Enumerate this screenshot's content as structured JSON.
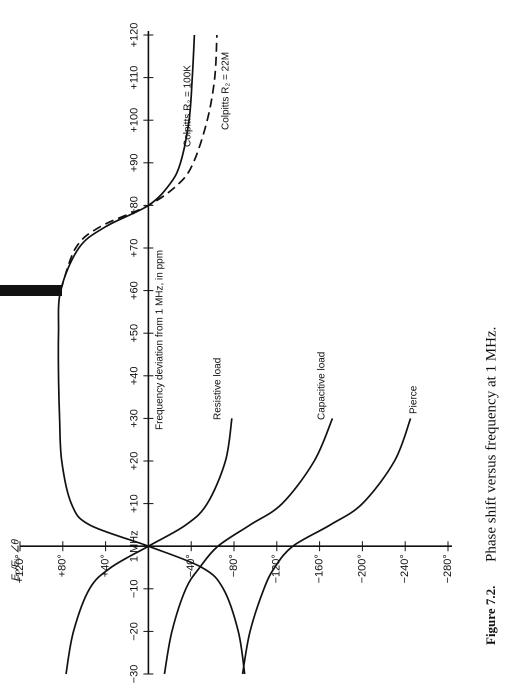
{
  "chart_data": {
    "type": "line",
    "caption_number": "Figure 7.2.",
    "caption": "Phase shift versus frequency at 1 MHz.",
    "xlabel": "Frequency deviation from 1 MHz, in ppm",
    "ylabel": "E₀/Eᵢ, ∠θ",
    "x": [
      -30,
      -20,
      -10,
      -5,
      0,
      5,
      10,
      20,
      30,
      40,
      50,
      60,
      70,
      75,
      80,
      85,
      90,
      100,
      110,
      120
    ],
    "xlim": [
      -30,
      120
    ],
    "ylim": [
      -280,
      120
    ],
    "xticks": [
      {
        "value": -30,
        "label": "−30"
      },
      {
        "value": -20,
        "label": "−20"
      },
      {
        "value": -10,
        "label": "−10"
      },
      {
        "value": 0,
        "label": "1 MHz"
      },
      {
        "value": 10,
        "label": "+10"
      },
      {
        "value": 20,
        "label": "+20"
      },
      {
        "value": 30,
        "label": "+30"
      },
      {
        "value": 40,
        "label": "+40"
      },
      {
        "value": 50,
        "label": "+50"
      },
      {
        "value": 60,
        "label": "+60"
      },
      {
        "value": 70,
        "label": "+70"
      },
      {
        "value": 80,
        "label": "+80"
      },
      {
        "value": 90,
        "label": "+90"
      },
      {
        "value": 100,
        "label": "+100"
      },
      {
        "value": 110,
        "label": "+110"
      },
      {
        "value": 120,
        "label": "+120"
      }
    ],
    "yticks": [
      {
        "value": 120,
        "label": "+120°"
      },
      {
        "value": 80,
        "label": "+80°"
      },
      {
        "value": 40,
        "label": "+40°"
      },
      {
        "value": -40,
        "label": "−40°"
      },
      {
        "value": -80,
        "label": "−80°"
      },
      {
        "value": -120,
        "label": "−120°"
      },
      {
        "value": -160,
        "label": "−160°"
      },
      {
        "value": -200,
        "label": "−200°"
      },
      {
        "value": -240,
        "label": "−240°"
      },
      {
        "value": -280,
        "label": "−280°"
      }
    ],
    "series": [
      {
        "name": "Colpitts R₂ = 100K",
        "color": "#111",
        "dashed": false,
        "values": [
          -90,
          -84,
          -70,
          -50,
          0,
          55,
          72,
          81,
          83,
          84,
          84,
          82,
          65,
          40,
          0,
          -20,
          -30,
          -38,
          -41,
          -43
        ]
      },
      {
        "name": "Colpitts R₂ = 22M",
        "color": "#111",
        "dashed": true,
        "values": [
          null,
          null,
          null,
          null,
          null,
          null,
          null,
          null,
          null,
          null,
          null,
          82,
          68,
          45,
          0,
          -28,
          -42,
          -55,
          -62,
          -64
        ]
      },
      {
        "name": "Resistive load",
        "color": "#111",
        "dashed": false,
        "values": [
          77,
          70,
          55,
          35,
          0,
          -35,
          -55,
          -72,
          -78,
          null,
          null,
          null,
          null,
          null,
          null,
          null,
          null,
          null,
          null,
          null
        ]
      },
      {
        "name": "Capacitive load",
        "color": "#111",
        "dashed": false,
        "values": [
          -15,
          -22,
          -35,
          -48,
          -65,
          -95,
          -125,
          -155,
          -172,
          null,
          null,
          null,
          null,
          null,
          null,
          null,
          null,
          null,
          null,
          null
        ]
      },
      {
        "name": "Pierce",
        "color": "#111",
        "dashed": false,
        "values": [
          -88,
          -95,
          -108,
          -118,
          -135,
          -170,
          -200,
          -230,
          -245,
          null,
          null,
          null,
          null,
          null,
          null,
          null,
          null,
          null,
          null,
          null
        ]
      }
    ]
  }
}
